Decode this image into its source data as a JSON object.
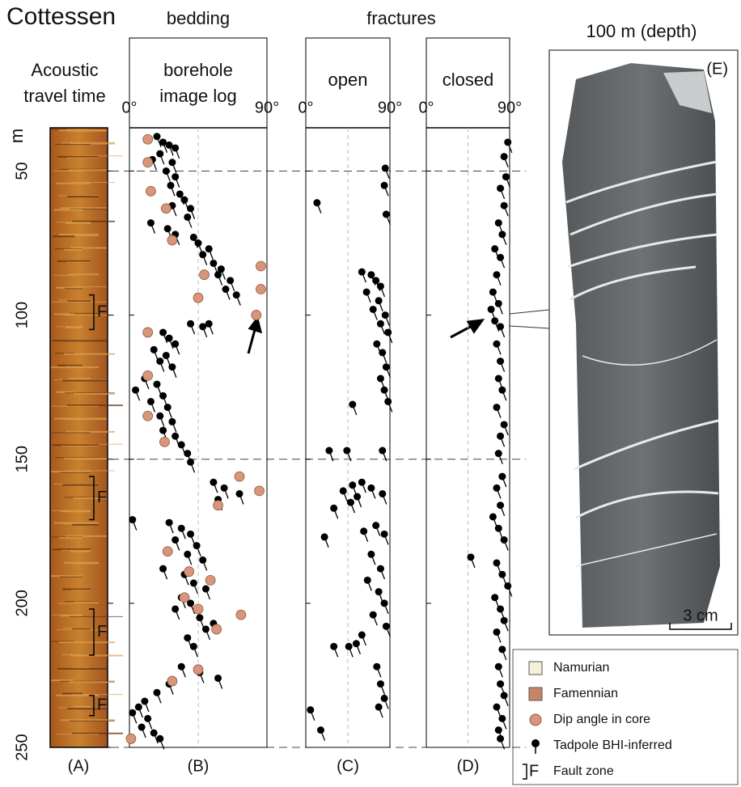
{
  "title": "Cottessen",
  "panel_a": {
    "header": "Acoustic travel time",
    "label": "(A)"
  },
  "depth_axis": {
    "unit": "m"
  },
  "fractures_header": "fractures",
  "chart_data": [
    {
      "type": "scatter",
      "group": "bedding",
      "title": "borehole image log",
      "label": "(B)",
      "xlim": [
        0,
        90
      ],
      "xticks": [
        {
          "value": 0,
          "label": "0°"
        },
        {
          "value": 90,
          "label": "90°"
        }
      ],
      "ylim": [
        35,
        250
      ],
      "yticks": [
        50,
        100,
        150,
        200,
        250
      ],
      "hlines": [
        50,
        150,
        250
      ],
      "series": [
        {
          "color": "#000000",
          "x": [
            18,
            22,
            26,
            30,
            20,
            15,
            28,
            24,
            30,
            27,
            33,
            36,
            28,
            40,
            38,
            14,
            25,
            30,
            42,
            45,
            52,
            48,
            55,
            60,
            58,
            66,
            63,
            70,
            40,
            48,
            52,
            22,
            26,
            30,
            16,
            24,
            20,
            28,
            10,
            18,
            4,
            22,
            14,
            25,
            20,
            28,
            22,
            30,
            34,
            38,
            40,
            55,
            62,
            72,
            58,
            2,
            26,
            34,
            40,
            30,
            44,
            38,
            48,
            22,
            36,
            42,
            50,
            34,
            40,
            30,
            46,
            55,
            50,
            38,
            42,
            34,
            46,
            58,
            26,
            18,
            10,
            6,
            2,
            12,
            8,
            16,
            20
          ],
          "y": [
            38,
            40,
            41,
            42,
            44,
            46,
            47,
            50,
            52,
            55,
            58,
            60,
            62,
            63,
            66,
            68,
            70,
            72,
            73,
            75,
            77,
            79,
            82,
            84,
            86,
            88,
            91,
            93,
            103,
            104,
            103,
            106,
            108,
            110,
            112,
            114,
            116,
            118,
            122,
            124,
            126,
            128,
            130,
            132,
            135,
            137,
            140,
            142,
            145,
            148,
            151,
            158,
            160,
            162,
            164,
            171,
            172,
            174,
            176,
            178,
            180,
            183,
            185,
            188,
            190,
            193,
            195,
            198,
            200,
            202,
            205,
            207,
            209,
            212,
            215,
            222,
            224,
            226,
            228,
            231,
            234,
            236,
            238,
            240,
            243,
            245,
            247
          ]
        },
        {
          "color": "#d9957a",
          "x": [
            12,
            12,
            14,
            24,
            28,
            49,
            45,
            86,
            86,
            83,
            12,
            12,
            12,
            23,
            72,
            85,
            58,
            25,
            39,
            53,
            36,
            45,
            73,
            57,
            28,
            45,
            1
          ],
          "y": [
            39,
            47,
            57,
            63,
            74,
            86,
            94,
            83,
            91,
            100,
            106,
            121,
            135,
            144,
            156,
            161,
            166,
            182,
            189,
            192,
            198,
            202,
            204,
            209,
            227,
            223,
            247
          ]
        }
      ]
    },
    {
      "type": "scatter",
      "title": "open",
      "label": "(C)",
      "xlim": [
        0,
        90
      ],
      "xticks": [
        {
          "value": 0,
          "label": "0°"
        },
        {
          "value": 90,
          "label": "90°"
        }
      ],
      "ylim": [
        35,
        250
      ],
      "yticks": [
        50,
        100,
        150,
        200,
        250
      ],
      "series": [
        {
          "color": "#000000",
          "x": [
            85,
            12,
            86,
            84,
            60,
            70,
            75,
            80,
            65,
            78,
            72,
            85,
            80,
            88,
            76,
            82,
            86,
            80,
            84,
            88,
            50,
            44,
            25,
            82,
            60,
            50,
            40,
            55,
            70,
            82,
            48,
            30,
            75,
            62,
            20,
            84,
            70,
            80,
            66,
            78,
            84,
            72,
            86,
            60,
            46,
            30,
            54,
            76,
            80,
            84,
            78,
            5,
            16
          ],
          "y": [
            49,
            61,
            65,
            55,
            85,
            86,
            88,
            90,
            92,
            95,
            98,
            100,
            103,
            106,
            110,
            113,
            118,
            122,
            126,
            130,
            131,
            147,
            147,
            147,
            158,
            159,
            161,
            163,
            160,
            162,
            165,
            167,
            173,
            175,
            177,
            176,
            183,
            188,
            192,
            196,
            200,
            204,
            208,
            211,
            215,
            215,
            214,
            222,
            228,
            233,
            236,
            237,
            244
          ]
        }
      ]
    },
    {
      "type": "scatter",
      "title": "closed",
      "label": "(D)",
      "xlim": [
        0,
        90
      ],
      "xticks": [
        {
          "value": 0,
          "label": "0°"
        },
        {
          "value": 90,
          "label": "90°"
        }
      ],
      "ylim": [
        35,
        250
      ],
      "yticks": [
        50,
        100,
        150,
        200,
        250
      ],
      "series": [
        {
          "color": "#000000",
          "x": [
            88,
            84,
            86,
            80,
            84,
            78,
            82,
            74,
            80,
            76,
            72,
            78,
            70,
            74,
            80,
            76,
            80,
            78,
            82,
            76,
            84,
            80,
            78,
            82,
            76,
            80,
            72,
            78,
            84,
            48,
            76,
            82,
            88,
            74,
            80,
            84,
            76,
            82,
            78,
            80,
            84,
            76,
            82,
            78,
            80
          ],
          "y": [
            40,
            45,
            52,
            56,
            62,
            68,
            72,
            77,
            80,
            86,
            92,
            96,
            98,
            102,
            104,
            110,
            116,
            122,
            126,
            132,
            138,
            142,
            148,
            156,
            160,
            166,
            170,
            174,
            178,
            184,
            186,
            190,
            194,
            198,
            202,
            206,
            210,
            216,
            222,
            228,
            232,
            236,
            240,
            244,
            247
          ]
        }
      ]
    }
  ],
  "fault_zones": {
    "label": "F",
    "ranges": [
      [
        93,
        105
      ],
      [
        156,
        171
      ],
      [
        202,
        218
      ],
      [
        232,
        239
      ]
    ]
  },
  "core_photo": {
    "title": "100 m (depth)",
    "label": "(E)",
    "scale": "3 cm"
  },
  "legend": [
    {
      "label": "Namurian",
      "color": "#f6f0d8"
    },
    {
      "label": "Famennian",
      "color": "#c98563"
    },
    {
      "label": "Dip angle in core",
      "color": "#d9957a"
    },
    {
      "label": "Tadpole BHI-inferred",
      "color": "#000000"
    },
    {
      "label": "Fault zone"
    }
  ]
}
